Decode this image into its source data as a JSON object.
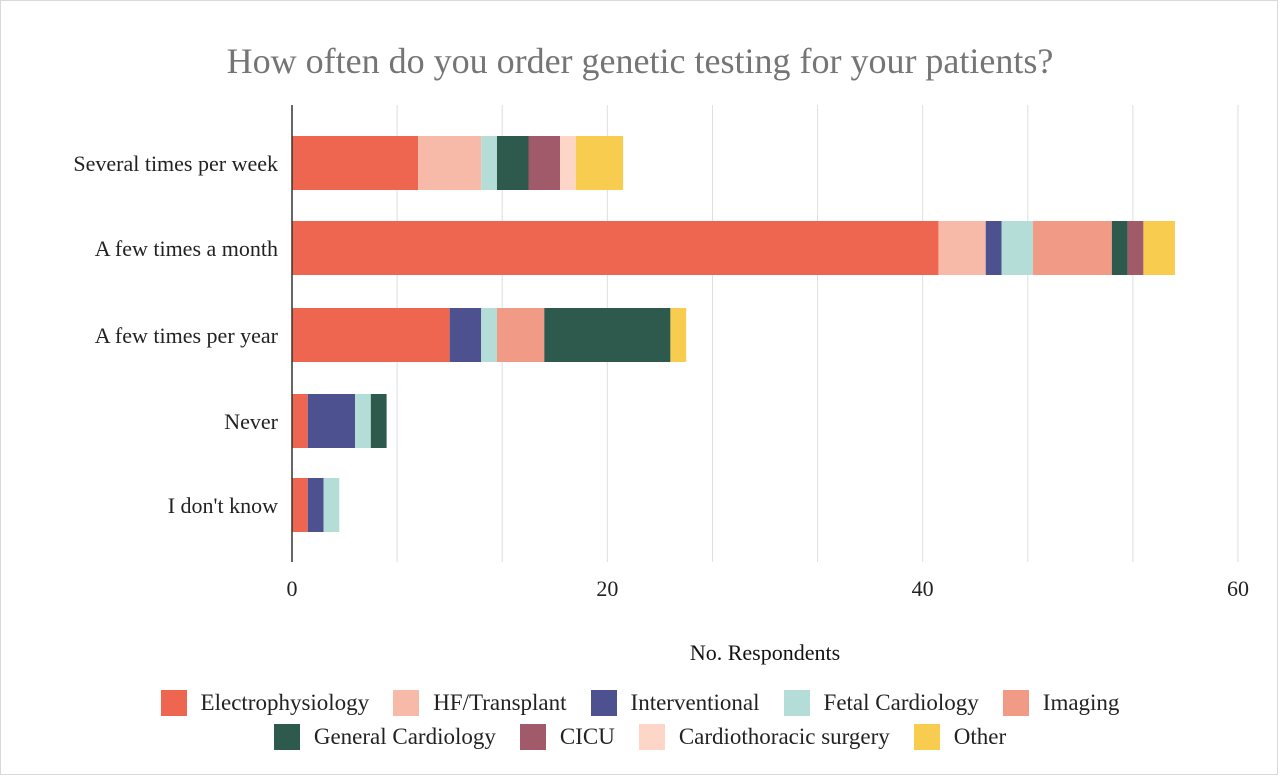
{
  "chart_data": {
    "type": "bar",
    "orientation": "horizontal",
    "stacked": true,
    "title": "How often do you order genetic testing for your patients?",
    "xlabel": "No. Respondents",
    "ylabel": "",
    "xlim": [
      0,
      60
    ],
    "x_ticks": [
      0,
      20,
      40,
      60
    ],
    "grid": true,
    "legend_position": "bottom",
    "categories": [
      "Several times per week",
      "A few times a month",
      "A few times per year",
      "Never",
      "I don't know"
    ],
    "series": [
      {
        "name": "Electrophysiology",
        "color": "#ef6650",
        "values": [
          8,
          41,
          10,
          1,
          1
        ]
      },
      {
        "name": "HF/Transplant",
        "color": "#f7b9a8",
        "values": [
          4,
          3,
          0,
          0,
          0
        ]
      },
      {
        "name": "Interventional",
        "color": "#4e5190",
        "values": [
          0,
          1,
          2,
          3,
          1
        ]
      },
      {
        "name": "Fetal Cardiology",
        "color": "#b3ddd6",
        "values": [
          1,
          2,
          1,
          1,
          1
        ]
      },
      {
        "name": "Imaging",
        "color": "#f19a86",
        "values": [
          0,
          5,
          3,
          0,
          0
        ]
      },
      {
        "name": "General Cardiology",
        "color": "#2e5a4d",
        "values": [
          2,
          1,
          8,
          1,
          0
        ]
      },
      {
        "name": "CICU",
        "color": "#a05a6a",
        "values": [
          2,
          1,
          0,
          0,
          0
        ]
      },
      {
        "name": "Cardiothoracic surgery",
        "color": "#fdd6c7",
        "values": [
          1,
          0,
          0,
          0,
          0
        ]
      },
      {
        "name": "Other",
        "color": "#f7cc4f",
        "values": [
          3,
          2,
          1,
          0,
          0
        ]
      }
    ]
  }
}
